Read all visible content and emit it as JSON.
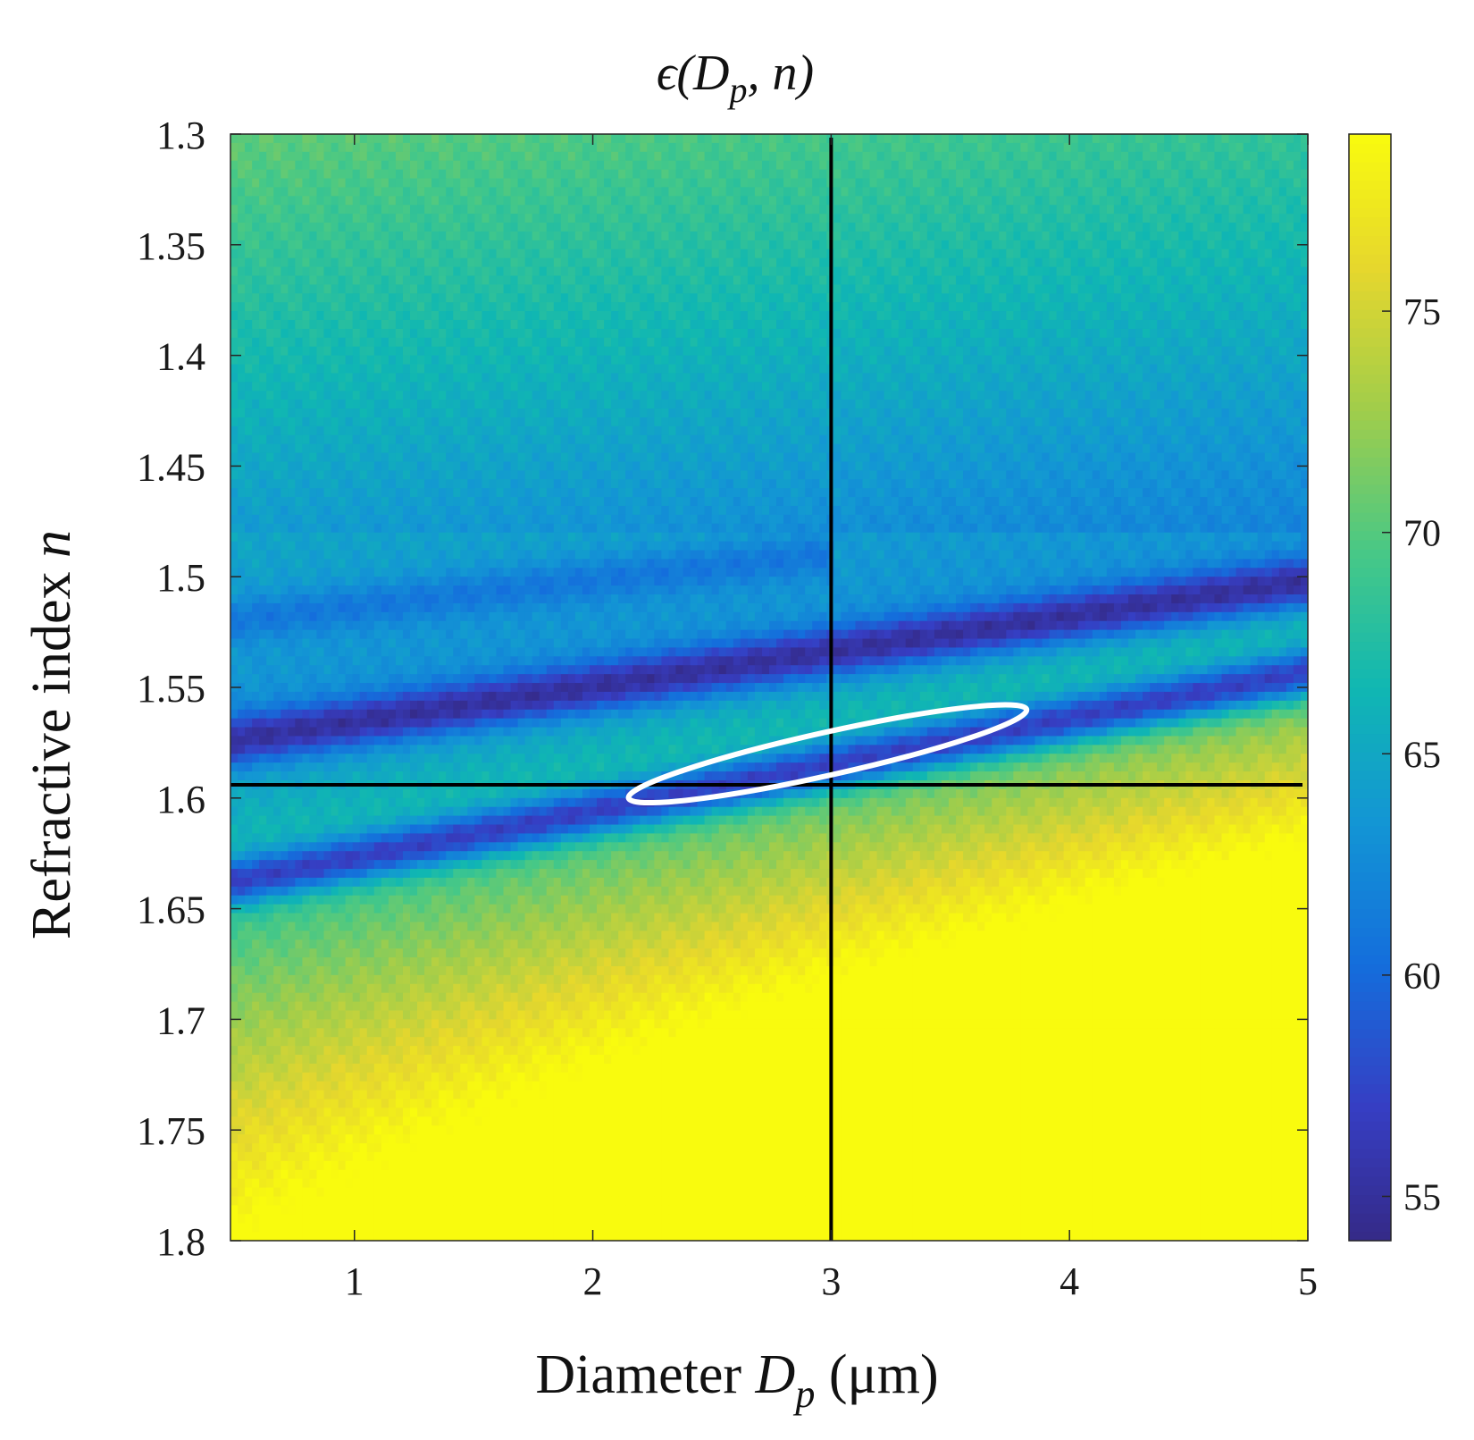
{
  "chart_data": {
    "type": "heatmap",
    "title": {
      "prefix": "ϵ(",
      "var": "D",
      "sub": "p",
      "suffix": ", n)"
    },
    "xlabel": {
      "prefix": "Diameter ",
      "var": "D",
      "sub": "p",
      "suffix": " (μm)"
    },
    "ylabel": {
      "prefix": "Refractive index ",
      "var": "n"
    },
    "xlim": [
      0.48,
      5.0
    ],
    "ylim": [
      1.3,
      1.8
    ],
    "y_reversed": true,
    "x_ticks": [
      "1",
      "2",
      "3",
      "4",
      "5"
    ],
    "y_ticks": [
      "1.3",
      "1.35",
      "1.4",
      "1.45",
      "1.5",
      "1.55",
      "1.6",
      "1.65",
      "1.7",
      "1.75",
      "1.8"
    ],
    "colorbar": {
      "range": [
        54,
        79
      ],
      "ticks": [
        "55",
        "60",
        "65",
        "70",
        "75"
      ],
      "colormap": "parula"
    },
    "crosshair": {
      "x": 3.0,
      "y": 1.594
    },
    "ellipse": {
      "x_range": [
        2.15,
        3.82
      ],
      "y_range": [
        1.56,
        1.6
      ],
      "color": "#ffffff"
    },
    "minimum_bands": [
      {
        "x": [
          0.48,
          5.0
        ],
        "y": [
          1.574,
          1.502
        ],
        "depth": 55
      },
      {
        "x": [
          0.48,
          5.0
        ],
        "y": [
          1.638,
          1.543
        ],
        "depth": 57
      },
      {
        "x": [
          0.48,
          3.0
        ],
        "y": [
          1.52,
          1.49
        ],
        "depth": 61
      }
    ],
    "grid": false
  }
}
